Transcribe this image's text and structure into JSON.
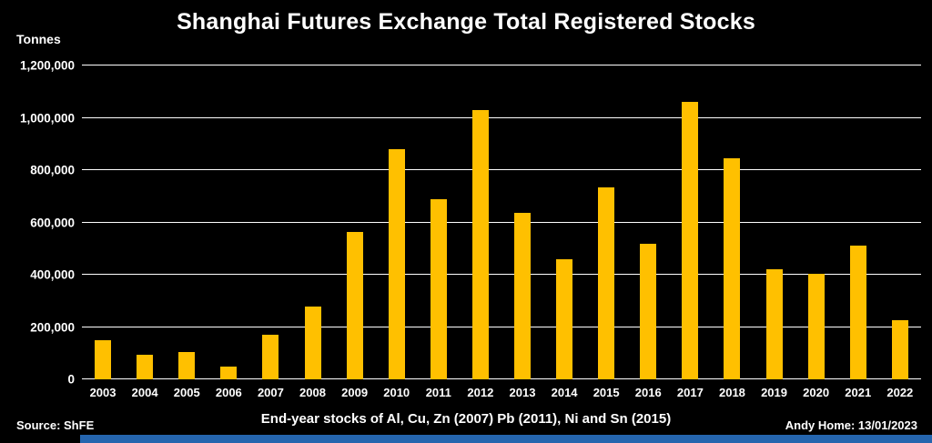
{
  "title": "Shanghai Futures Exchange Total Registered Stocks",
  "y_axis_unit": "Tonnes",
  "footer": {
    "caption": "End-year stocks of Al, Cu, Zn (2007) Pb (2011), Ni and Sn (2015)",
    "source": "Source: ShFE",
    "credit": "Andy Home: 13/01/2023"
  },
  "colors": {
    "background": "#000000",
    "bar": "#FFC000",
    "gridline": "#FFFFFF",
    "text": "#FFFFFF",
    "bottom_strip": "#2565AE"
  },
  "chart_data": {
    "type": "bar",
    "title": "Shanghai Futures Exchange Total Registered Stocks",
    "xlabel": "",
    "ylabel": "Tonnes",
    "categories": [
      "2003",
      "2004",
      "2005",
      "2006",
      "2007",
      "2008",
      "2009",
      "2010",
      "2011",
      "2012",
      "2013",
      "2014",
      "2015",
      "2016",
      "2017",
      "2018",
      "2019",
      "2020",
      "2021",
      "2022"
    ],
    "values": [
      150000,
      95000,
      105000,
      50000,
      170000,
      280000,
      565000,
      880000,
      690000,
      1030000,
      635000,
      460000,
      735000,
      520000,
      1060000,
      845000,
      420000,
      405000,
      510000,
      225000
    ],
    "ylim": [
      0,
      1200000
    ],
    "ytick_step": 200000,
    "grid": true,
    "legend": "none",
    "bar_color": "#FFC000"
  }
}
